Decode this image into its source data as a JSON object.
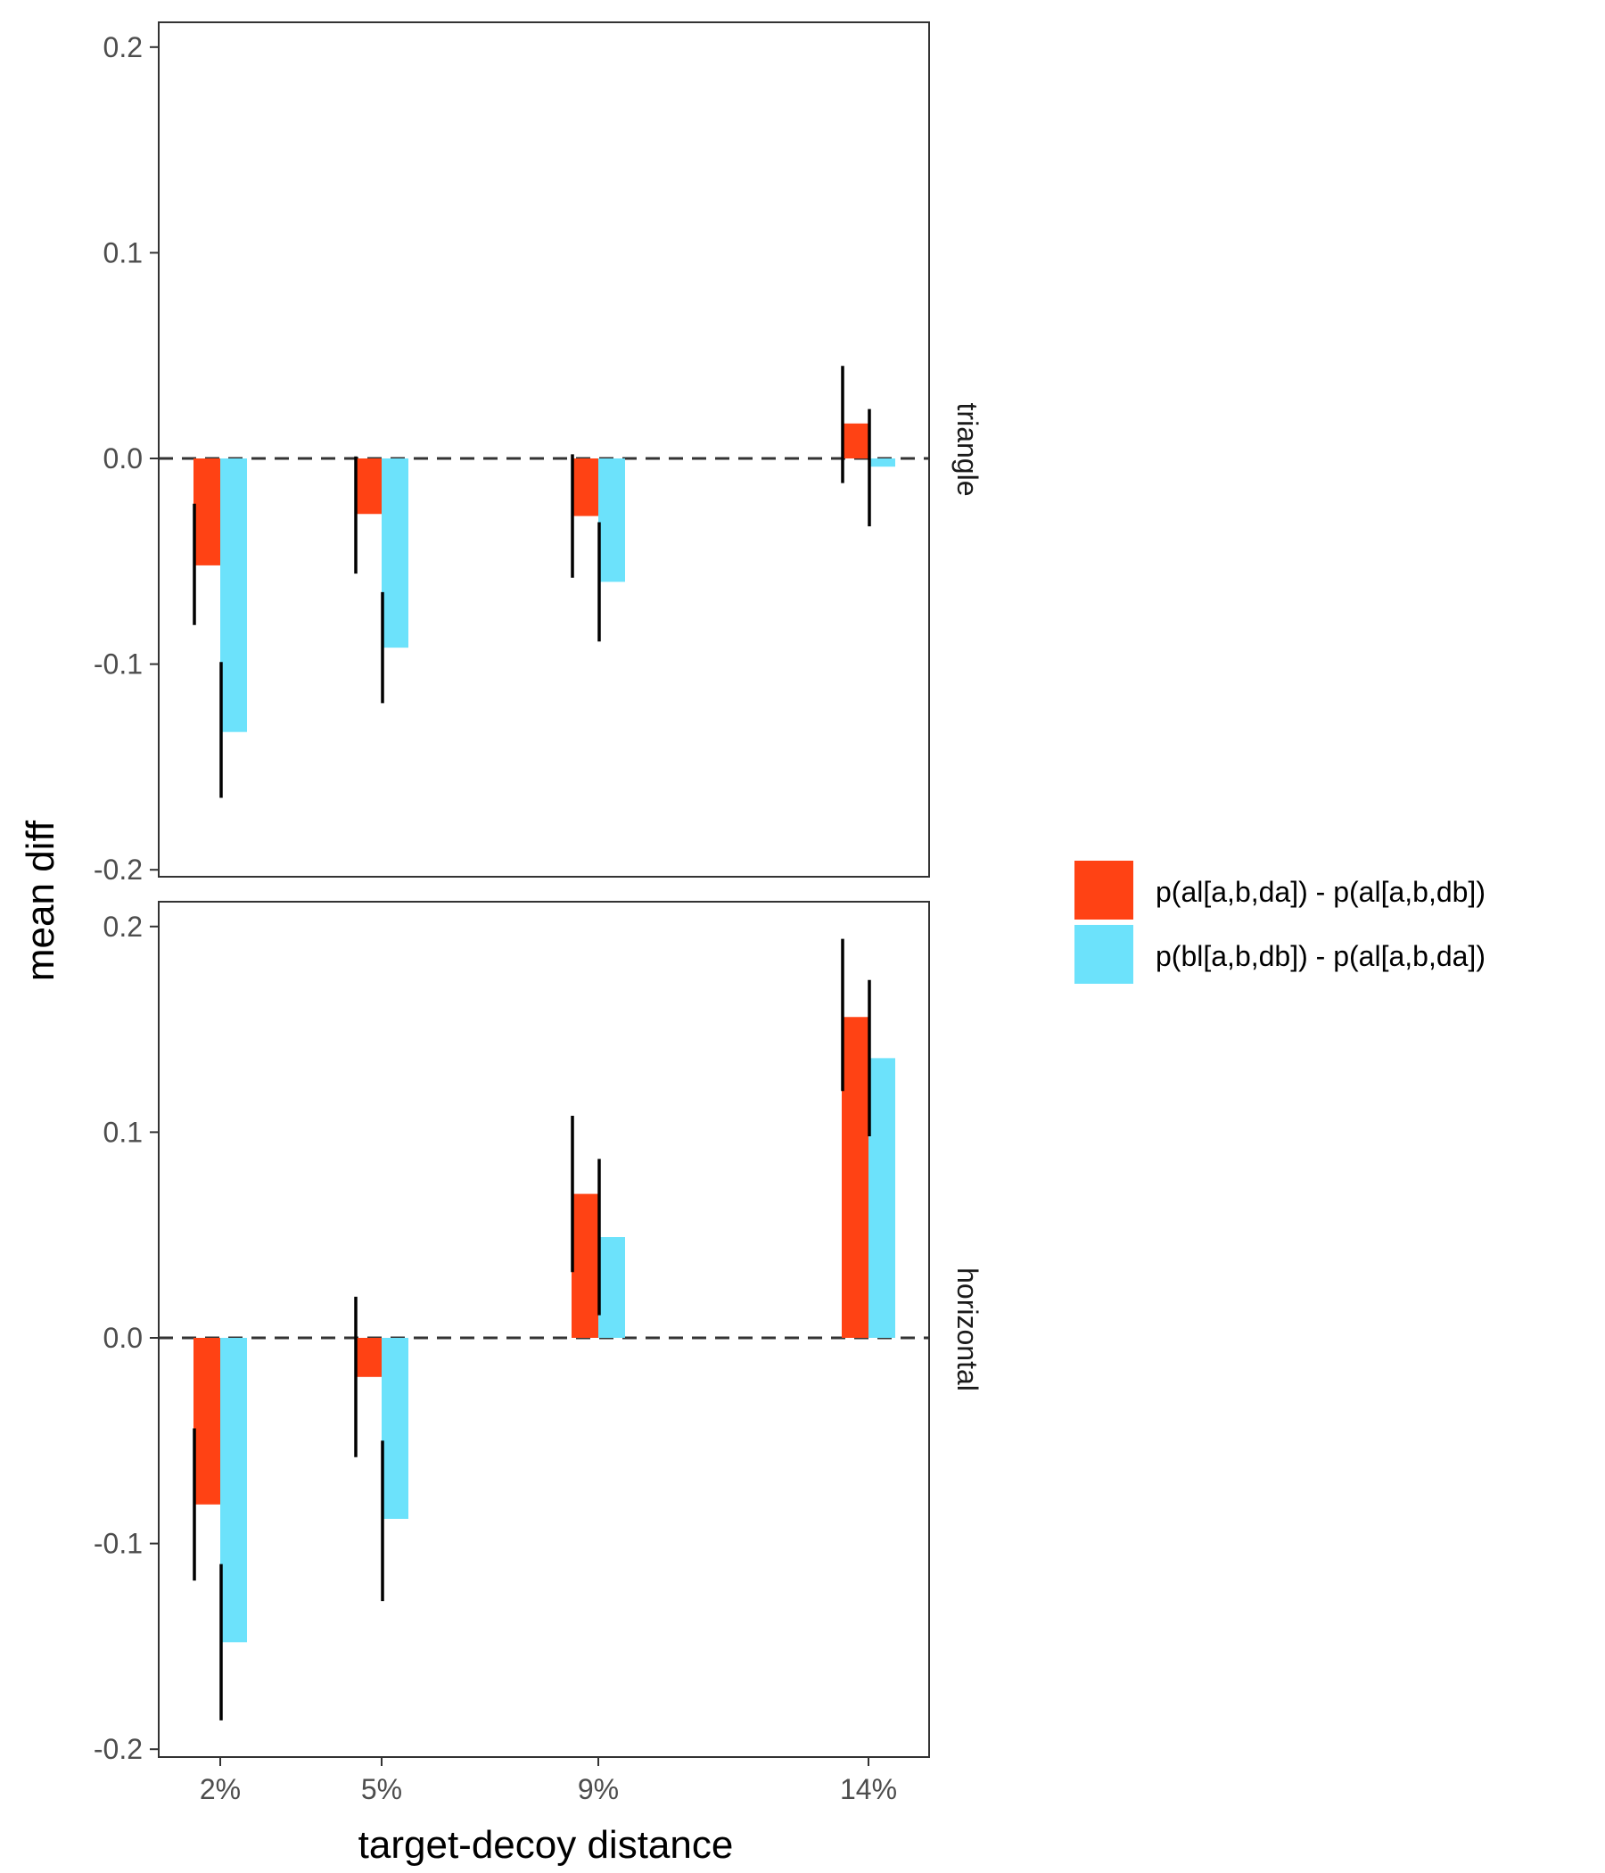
{
  "chart_data": {
    "type": "bar",
    "xlabel": "target-decoy distance",
    "ylabel": "mean diff",
    "ylim": [
      -0.2,
      0.2
    ],
    "yticks": [
      "0.2",
      "0.1",
      "0.0",
      "-0.1",
      "-0.2"
    ],
    "categories": [
      "2%",
      "5%",
      "9%",
      "14%"
    ],
    "reference_line": 0.0,
    "legend_placement": "right",
    "series_meta": [
      {
        "name": "p(al[a,b,da]) - p(al[a,b,db])",
        "color": "#FF4214"
      },
      {
        "name": "p(bl[a,b,db]) - p(al[a,b,da])",
        "color": "#6CE2FB"
      }
    ],
    "panels": [
      {
        "strip": "triangle",
        "series": [
          {
            "name": "p(al[a,b,da]) - p(al[a,b,db])",
            "values": [
              -0.052,
              -0.027,
              -0.028,
              0.017
            ],
            "err_low": [
              -0.081,
              -0.056,
              -0.058,
              -0.012
            ],
            "err_high": [
              -0.022,
              0.001,
              0.002,
              0.045
            ]
          },
          {
            "name": "p(bl[a,b,db]) - p(al[a,b,da])",
            "values": [
              -0.133,
              -0.092,
              -0.06,
              -0.004
            ],
            "err_low": [
              -0.165,
              -0.119,
              -0.089,
              -0.033
            ],
            "err_high": [
              -0.099,
              -0.065,
              -0.031,
              0.024
            ]
          }
        ]
      },
      {
        "strip": "horizontal",
        "series": [
          {
            "name": "p(al[a,b,da]) - p(al[a,b,db])",
            "values": [
              -0.081,
              -0.019,
              0.07,
              0.156
            ],
            "err_low": [
              -0.118,
              -0.058,
              0.032,
              0.12
            ],
            "err_high": [
              -0.044,
              0.02,
              0.108,
              0.194
            ]
          },
          {
            "name": "p(bl[a,b,db]) - p(al[a,b,da])",
            "values": [
              -0.148,
              -0.088,
              0.049,
              0.136
            ],
            "err_low": [
              -0.186,
              -0.128,
              0.011,
              0.098
            ],
            "err_high": [
              -0.11,
              -0.05,
              0.087,
              0.174
            ]
          }
        ]
      }
    ]
  }
}
